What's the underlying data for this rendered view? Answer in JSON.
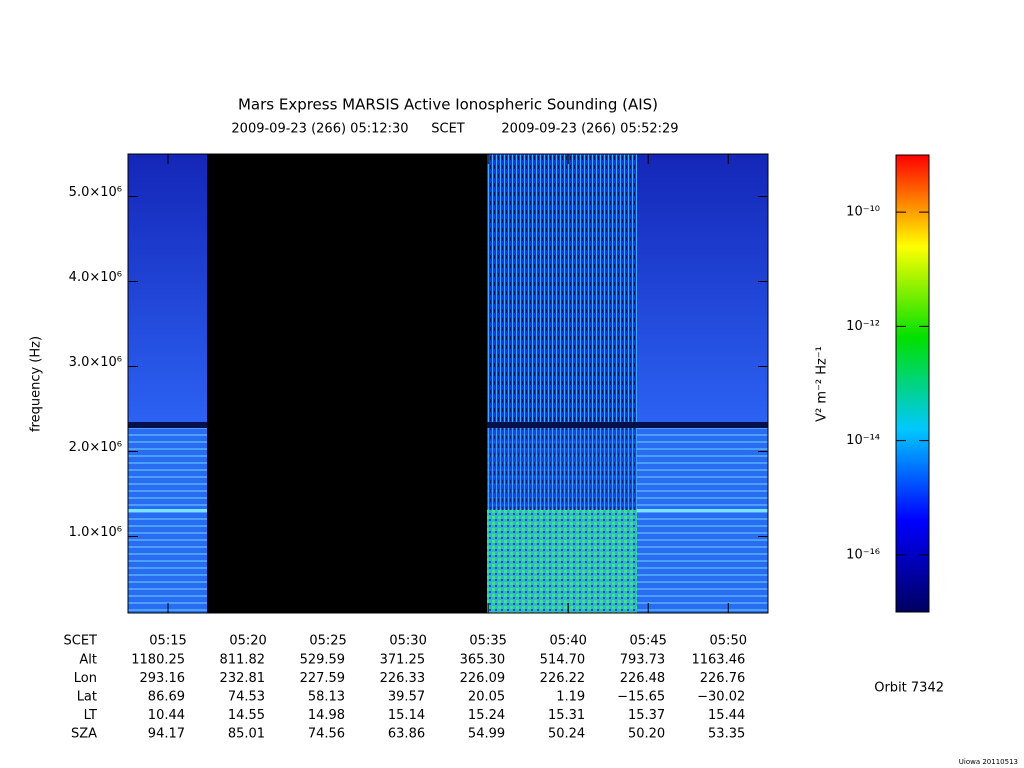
{
  "chart_data": {
    "type": "spectrogram",
    "title": "Mars Express MARSIS Active Ionospheric Sounding (AIS)",
    "subtitle": {
      "start": "2009-09-23 (266) 05:12:30",
      "middle": "SCET",
      "end": "2009-09-23 (266) 05:52:29"
    },
    "y_label": "frequency (Hz)",
    "xlim": [
      312.5,
      352.4833
    ],
    "xticks": [
      {
        "value": 315,
        "label": "05:15"
      },
      {
        "value": 320,
        "label": "05:20"
      },
      {
        "value": 325,
        "label": "05:25"
      },
      {
        "value": 330,
        "label": "05:30"
      },
      {
        "value": 335,
        "label": "05:35"
      },
      {
        "value": 340,
        "label": "05:40"
      },
      {
        "value": 345,
        "label": "05:45"
      },
      {
        "value": 350,
        "label": "05:50"
      }
    ],
    "ylim": [
      100000,
      5500000
    ],
    "yticks": [
      {
        "value": 1000000,
        "label": "1.0×10⁶"
      },
      {
        "value": 2000000,
        "label": "2.0×10⁶"
      },
      {
        "value": 3000000,
        "label": "3.0×10⁶"
      },
      {
        "value": 4000000,
        "label": "4.0×10⁶"
      },
      {
        "value": 5000000,
        "label": "5.0×10⁶"
      }
    ],
    "colorbar": {
      "label": "V² m⁻² Hz⁻¹",
      "scale": "log",
      "lim": [
        1e-17,
        1e-09
      ],
      "ticks": [
        {
          "value": 1e-16,
          "label": "10⁻¹⁶"
        },
        {
          "value": 1e-14,
          "label": "10⁻¹⁴"
        },
        {
          "value": 1e-12,
          "label": "10⁻¹²"
        },
        {
          "value": 1e-10,
          "label": "10⁻¹⁰"
        }
      ],
      "colors": [
        "#000060",
        "#0000ff",
        "#00c8ff",
        "#00e000",
        "#ffff00",
        "#ff0000"
      ]
    }
  },
  "ephemeris": {
    "x_row_label": "SCET",
    "rows": [
      {
        "label": "Alt",
        "values": [
          "1180.25",
          "811.82",
          "529.59",
          "371.25",
          "365.30",
          "514.70",
          "793.73",
          "1163.46"
        ]
      },
      {
        "label": "Lon",
        "values": [
          "293.16",
          "232.81",
          "227.59",
          "226.33",
          "226.09",
          "226.22",
          "226.48",
          "226.76"
        ]
      },
      {
        "label": "Lat",
        "values": [
          "86.69",
          "74.53",
          "58.13",
          "39.57",
          "20.05",
          "1.19",
          "−15.65",
          "−30.02"
        ]
      },
      {
        "label": "LT",
        "values": [
          "10.44",
          "14.55",
          "14.98",
          "15.14",
          "15.24",
          "15.31",
          "15.37",
          "15.44"
        ]
      },
      {
        "label": "SZA",
        "values": [
          "94.17",
          "85.01",
          "74.56",
          "63.86",
          "54.99",
          "50.24",
          "50.20",
          "53.35"
        ]
      }
    ]
  },
  "orbit": "Orbit 7342",
  "credit": "Uiowa 20110513"
}
